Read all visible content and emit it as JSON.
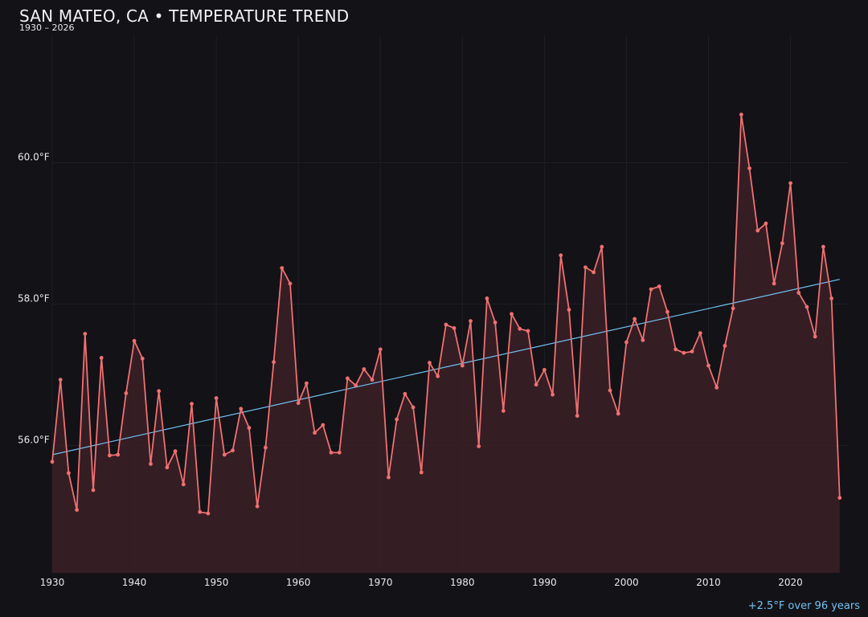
{
  "chart_data": {
    "type": "line",
    "title": "SAN MATEO, CA • TEMPERATURE TREND",
    "subtitle": "1930 – 2026",
    "footnote": "+2.5°F over 96 years",
    "xlabel": "",
    "ylabel": "",
    "x_ticks": [
      1930,
      1940,
      1950,
      1960,
      1970,
      1980,
      1990,
      2000,
      2010,
      2020
    ],
    "x_tick_labels": [
      "1930",
      "1940",
      "1950",
      "1960",
      "1970",
      "1980",
      "1990",
      "2000",
      "2010",
      "2020"
    ],
    "y_ticks": [
      56,
      58,
      60
    ],
    "y_tick_labels": [
      "56.0°F",
      "58.0°F",
      "60.0°F"
    ],
    "xlim": [
      1930,
      2027
    ],
    "ylim": [
      54.2,
      61.8
    ],
    "grid": true,
    "colors": {
      "background": "#131217",
      "line": "#f07070",
      "area": "#3a1f26",
      "trend": "#6fc2f2",
      "grid": "#1f1e24"
    },
    "trend": {
      "x": [
        1930,
        2026
      ],
      "y": [
        55.87,
        58.35
      ]
    },
    "series": [
      {
        "x": [
          1930,
          1931,
          1932,
          1933,
          1934,
          1935,
          1936,
          1937,
          1938,
          1939,
          1940,
          1941,
          1942,
          1943,
          1944,
          1945,
          1946,
          1947,
          1948,
          1949,
          1950,
          1951,
          1952,
          1953,
          1954,
          1955,
          1956,
          1957,
          1958,
          1959,
          1960,
          1961,
          1962,
          1963,
          1964,
          1965,
          1966,
          1967,
          1968,
          1969,
          1970,
          1971,
          1972,
          1973,
          1974,
          1975,
          1976,
          1977,
          1978,
          1979,
          1980,
          1981,
          1982,
          1983,
          1984,
          1985,
          1986,
          1987,
          1988,
          1989,
          1990,
          1991,
          1992,
          1993,
          1994,
          1995,
          1996,
          1997,
          1998,
          1999,
          2000,
          2001,
          2002,
          2003,
          2004,
          2005,
          2006,
          2007,
          2008,
          2009,
          2010,
          2011,
          2012,
          2013,
          2014,
          2015,
          2016,
          2017,
          2018,
          2019,
          2020,
          2021,
          2022,
          2023,
          2024,
          2025,
          2026
        ],
        "values": [
          55.77,
          56.93,
          55.61,
          55.09,
          57.58,
          55.37,
          57.24,
          55.86,
          55.87,
          56.74,
          57.48,
          57.23,
          55.74,
          56.77,
          55.69,
          55.92,
          55.45,
          56.59,
          55.06,
          55.04,
          56.67,
          55.87,
          55.93,
          56.52,
          56.25,
          55.14,
          55.97,
          57.18,
          58.51,
          58.29,
          56.6,
          56.88,
          56.18,
          56.29,
          55.9,
          55.9,
          56.95,
          56.85,
          57.08,
          56.93,
          57.36,
          55.55,
          56.37,
          56.73,
          56.54,
          55.62,
          57.17,
          56.98,
          57.71,
          57.66,
          57.13,
          57.76,
          55.99,
          58.08,
          57.74,
          56.49,
          57.86,
          57.65,
          57.62,
          56.86,
          57.07,
          56.72,
          58.69,
          57.92,
          56.42,
          58.52,
          58.45,
          58.81,
          56.78,
          56.45,
          57.46,
          57.79,
          57.49,
          58.21,
          58.25,
          57.89,
          57.36,
          57.31,
          57.33,
          57.59,
          57.13,
          56.82,
          57.41,
          57.94,
          60.68,
          59.92,
          59.04,
          59.14,
          58.29,
          58.86,
          59.71,
          58.16,
          57.96,
          57.54,
          58.81,
          58.08,
          55.26
        ]
      }
    ]
  }
}
